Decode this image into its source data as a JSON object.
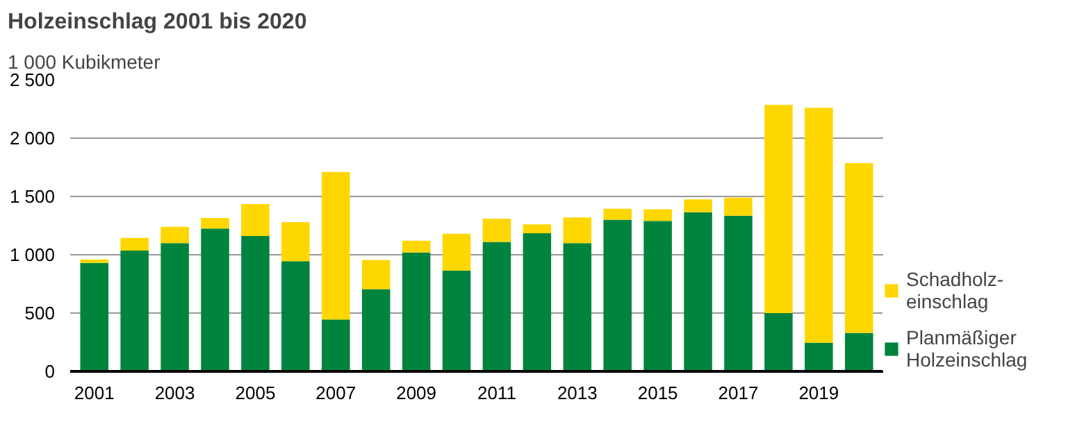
{
  "chart_data": {
    "type": "bar",
    "stacked": true,
    "title": "Holzeinschlag 2001 bis 2020",
    "ylabel": "1 000 Kubikmeter",
    "categories": [
      "2001",
      null,
      "2003",
      null,
      "2005",
      null,
      "2007",
      null,
      "2009",
      null,
      "2011",
      null,
      "2013",
      null,
      "2015",
      null,
      "2017",
      null,
      "2019",
      null
    ],
    "series": [
      {
        "name": "Planmäßiger\nHolzeinschlag",
        "color": "#00843d",
        "values": [
          930,
          1035,
          1100,
          1225,
          1160,
          945,
          445,
          705,
          1020,
          865,
          1110,
          1185,
          1100,
          1300,
          1290,
          1365,
          1335,
          500,
          245,
          330
        ]
      },
      {
        "name": "Schadholz-\neinschlag",
        "color": "#ffd700",
        "values": [
          30,
          110,
          140,
          90,
          275,
          335,
          1265,
          250,
          100,
          315,
          200,
          75,
          220,
          95,
          100,
          110,
          155,
          1785,
          2015,
          1455
        ]
      }
    ],
    "ylim": [
      0,
      2500
    ],
    "yticks": [
      0,
      {
        "value": 500,
        "label": "500"
      },
      {
        "value": 1000,
        "label": "1 000"
      },
      {
        "value": 1500,
        "label": "1 500"
      },
      {
        "value": 2000,
        "label": "2 000"
      },
      {
        "value": 2500,
        "label": "2 500"
      }
    ],
    "grid": "y",
    "legend": "right"
  }
}
